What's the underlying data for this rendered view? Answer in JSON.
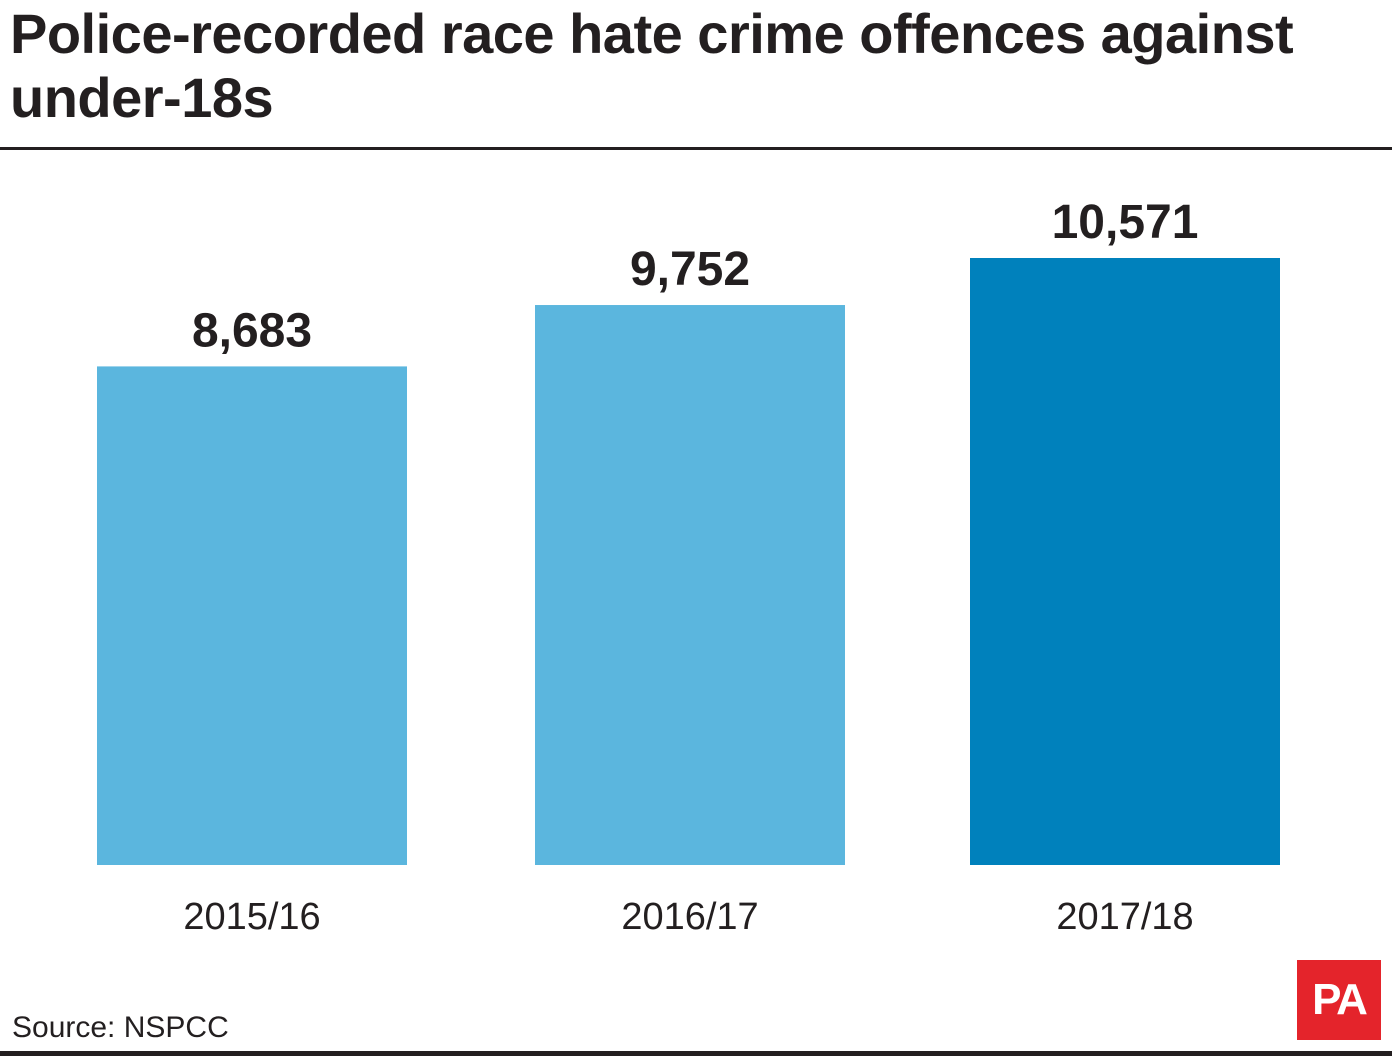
{
  "title": "Police-recorded race hate crime offences against under-18s",
  "source": "Source: NSPCC",
  "logo": {
    "text": "PA",
    "background": "#e4242b"
  },
  "colors": {
    "bar": "#5bb6de",
    "highlight": "#0081bc",
    "text": "#231f20"
  },
  "chart_data": {
    "type": "bar",
    "title": "Police-recorded race hate crime offences against under-18s",
    "categories": [
      "2015/16",
      "2016/17",
      "2017/18"
    ],
    "values": [
      8683,
      9752,
      10571
    ],
    "value_labels": [
      "8,683",
      "9,752",
      "10,571"
    ],
    "highlight_index": 2,
    "xlabel": "",
    "ylabel": "",
    "ylim": [
      0,
      10571
    ],
    "grid": false,
    "legend": "none"
  }
}
